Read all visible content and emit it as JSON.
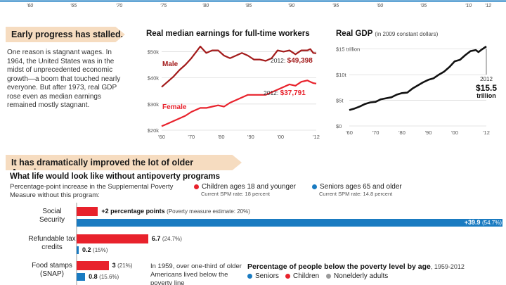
{
  "colors": {
    "male": "#a31b1b",
    "female": "#e8222c",
    "gdp": "#111111",
    "children": "#e8222c",
    "seniors": "#1a7bc1",
    "nonelderly": "#9a9a9a",
    "banner_bg": "#f6dcc0",
    "timeline": "#1a7bc1"
  },
  "timeline": {
    "ticks": [
      "'60",
      "'65",
      "'70",
      "'75",
      "'80",
      "'85",
      "'90",
      "'95",
      "'00",
      "'05",
      "'10",
      "'12"
    ]
  },
  "early": {
    "banner": "Early progress has stalled.",
    "body": "One reason is stagnant wages. In 1964, the United States was in the midst of unprecedented economic growth—a boom that touched nearly everyone. But after 1973, real GDP rose even as median earnings remained mostly stagnant."
  },
  "improved": {
    "banner": "It has dramatically improved the lot of older Americans."
  },
  "chart_data": [
    {
      "type": "line",
      "title": "Real median earnings for full-time workers",
      "x": [
        1960,
        1962,
        1964,
        1966,
        1968,
        1970,
        1972,
        1973,
        1975,
        1977,
        1979,
        1981,
        1983,
        1985,
        1987,
        1989,
        1991,
        1993,
        1995,
        1997,
        1999,
        2001,
        2003,
        2005,
        2007,
        2009,
        2010,
        2011,
        2012
      ],
      "series": [
        {
          "name": "Male",
          "values": [
            36.5,
            38.5,
            40.5,
            43.0,
            45.0,
            47.5,
            50.5,
            52.0,
            49.5,
            50.5,
            50.5,
            48.5,
            47.5,
            48.5,
            49.5,
            48.5,
            47.0,
            47.0,
            46.5,
            47.5,
            50.5,
            50.0,
            50.5,
            49.0,
            50.5,
            50.5,
            51.0,
            49.5,
            49.4
          ]
        },
        {
          "name": "Female",
          "values": [
            21.5,
            22.5,
            23.5,
            24.5,
            25.5,
            27.0,
            28.0,
            28.5,
            28.5,
            29.0,
            29.5,
            29.0,
            30.5,
            31.5,
            32.5,
            33.5,
            33.5,
            33.5,
            33.5,
            34.5,
            35.5,
            36.5,
            37.5,
            37.0,
            38.5,
            39.0,
            38.5,
            38.0,
            37.8
          ]
        }
      ],
      "yticks": [
        "$50k",
        "$40k",
        "$30k",
        "$20k"
      ],
      "ytick_values": [
        50,
        40,
        30,
        20
      ],
      "xticks": [
        "'60",
        "'70",
        "'80",
        "'90",
        "'00",
        "'12"
      ],
      "xtick_values": [
        1960,
        1970,
        1980,
        1990,
        2000,
        2012
      ],
      "ylim": [
        20,
        52
      ],
      "xlim": [
        1960,
        2012
      ],
      "annotations": {
        "male_label": "Male",
        "female_label": "Female",
        "male_2012": "2012: ",
        "male_2012_value": "$49,398",
        "female_2012": "2012: ",
        "female_2012_value": "$37,791"
      }
    },
    {
      "type": "line",
      "title": "Real GDP",
      "subtitle": "(in 2009 constant dollars)",
      "x": [
        1960,
        1962,
        1964,
        1966,
        1968,
        1970,
        1972,
        1974,
        1976,
        1978,
        1980,
        1982,
        1984,
        1986,
        1988,
        1990,
        1992,
        1994,
        1996,
        1998,
        2000,
        2002,
        2004,
        2006,
        2008,
        2009,
        2010,
        2012
      ],
      "series": [
        {
          "name": "Real GDP",
          "values": [
            3.1,
            3.4,
            3.8,
            4.3,
            4.6,
            4.7,
            5.2,
            5.4,
            5.6,
            6.1,
            6.4,
            6.5,
            7.3,
            7.9,
            8.5,
            9.0,
            9.3,
            10.0,
            10.6,
            11.5,
            12.6,
            12.9,
            13.8,
            14.6,
            14.8,
            14.4,
            14.8,
            15.5
          ]
        }
      ],
      "yticks": [
        "$15 trillion",
        "$10t",
        "$5t",
        "$0"
      ],
      "ytick_values": [
        15,
        10,
        5,
        0
      ],
      "xticks": [
        "'60",
        "'70",
        "'80",
        "'90",
        "'00",
        "'12"
      ],
      "xtick_values": [
        1960,
        1970,
        1980,
        1990,
        2000,
        2012
      ],
      "ylim": [
        0,
        15.5
      ],
      "xlim": [
        1960,
        2012
      ],
      "annotations": {
        "year": "2012",
        "value_big": "$15.5",
        "value_unit": "trillion"
      }
    },
    {
      "type": "bar",
      "title": "What life would look like without antipoverty programs",
      "subtitle": "Percentage-point increase in the Supplemental Poverty Measure without this program:",
      "categories": [
        "Social Security",
        "Refundable tax credits",
        "Food stamps (SNAP)"
      ],
      "series": [
        {
          "name": "Children ages 18 and younger",
          "note": "Current SPM rate: 18 percent",
          "values": [
            2,
            6.7,
            3
          ],
          "labels": [
            "+2 percentage points",
            "6.7",
            "3"
          ],
          "pct_labels": [
            "(Poverty measure estimate: 20%)",
            "(24.7%)",
            "(21%)"
          ]
        },
        {
          "name": "Seniors ages 65 and older",
          "note": "Current SPM rate: 14.8 percent",
          "values": [
            39.9,
            0.2,
            0.8
          ],
          "labels": [
            "+39.9",
            "0.2",
            "0.8"
          ],
          "pct_labels": [
            "(54.7%)",
            "(15%)",
            "(15.6%)"
          ]
        }
      ]
    }
  ],
  "bars_note": "In 1959, over one-third of older Americans lived below the poverty line",
  "poverty_age": {
    "title": "Percentage of people below the poverty level by age",
    "years": ", 1959-2012",
    "legend": [
      "Seniors",
      "Children",
      "Nonelderly adults"
    ]
  }
}
